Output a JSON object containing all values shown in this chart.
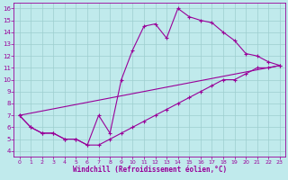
{
  "xlabel": "Windchill (Refroidissement éolien,°C)",
  "xlim": [
    -0.5,
    23.5
  ],
  "ylim": [
    3.5,
    16.5
  ],
  "xticks": [
    0,
    1,
    2,
    3,
    4,
    5,
    6,
    7,
    8,
    9,
    10,
    11,
    12,
    13,
    14,
    15,
    16,
    17,
    18,
    19,
    20,
    21,
    22,
    23
  ],
  "yticks": [
    4,
    5,
    6,
    7,
    8,
    9,
    10,
    11,
    12,
    13,
    14,
    15,
    16
  ],
  "bg_color": "#c0eaec",
  "line_color": "#990099",
  "grid_color": "#9dcece",
  "line1_x": [
    0,
    1,
    2,
    3,
    4,
    5,
    6,
    7,
    8,
    9,
    10,
    11,
    12,
    13,
    14,
    15,
    16,
    17,
    18,
    19,
    20,
    21,
    22,
    23
  ],
  "line1_y": [
    7,
    6,
    5.5,
    5.5,
    5,
    5,
    4.5,
    4.5,
    5,
    5.5,
    6,
    6.5,
    7,
    7.5,
    8,
    8.5,
    9,
    9.5,
    10,
    10,
    10.5,
    11,
    11,
    11.2
  ],
  "line2_x": [
    0,
    1,
    2,
    3,
    4,
    5,
    6,
    7,
    8,
    9,
    10,
    11,
    12,
    13,
    14,
    15,
    16,
    17,
    18,
    19,
    20,
    21,
    22,
    23
  ],
  "line2_y": [
    7,
    6,
    5.5,
    5.5,
    5,
    5,
    4.5,
    7,
    5.5,
    10,
    12.5,
    14.5,
    14.7,
    13.5,
    16,
    15.3,
    15,
    14.8,
    14,
    13.3,
    12.2,
    12,
    11.5,
    11.2
  ],
  "line3_x": [
    0,
    23
  ],
  "line3_y": [
    7,
    11.2
  ]
}
